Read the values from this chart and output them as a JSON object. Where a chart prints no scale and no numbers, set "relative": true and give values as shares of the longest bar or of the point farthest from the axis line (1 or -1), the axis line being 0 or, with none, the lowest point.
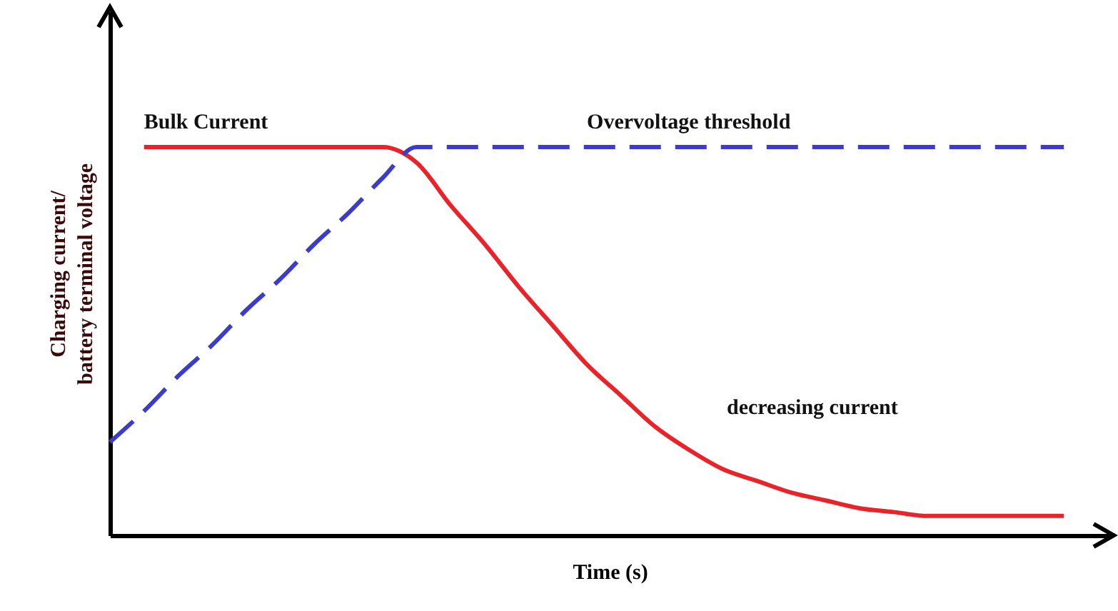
{
  "chart_data": {
    "type": "line",
    "relative": true,
    "xlabel": "Time (s)",
    "ylabel": "Charging current/\nbattery terminal voltage",
    "annotations": [
      "decreasing current"
    ],
    "categories": [
      null,
      null,
      null,
      null,
      null,
      null,
      null,
      null,
      null,
      null,
      null,
      null,
      null,
      null,
      null,
      null,
      null,
      null,
      null,
      null,
      null,
      null,
      null,
      null,
      null,
      null,
      null,
      null,
      null
    ],
    "series": [
      {
        "name": "Bulk Current",
        "color": "#e8242a",
        "line_style": "solid",
        "values": [
          null,
          1.0,
          1.0,
          1.0,
          1.0,
          1.0,
          1.0,
          1.0,
          1.0,
          0.96,
          0.85,
          0.75,
          0.64,
          0.54,
          0.44,
          0.36,
          0.28,
          0.22,
          0.17,
          0.14,
          0.11,
          0.09,
          0.07,
          0.06,
          0.05,
          0.05,
          0.05,
          0.05,
          0.05
        ]
      },
      {
        "name": "Overvoltage threshold",
        "color": "#3c3ccc",
        "line_style": "dashed",
        "values": [
          0.24,
          0.32,
          0.41,
          0.49,
          0.58,
          0.66,
          0.75,
          0.83,
          0.92,
          1.0,
          1.0,
          1.0,
          1.0,
          1.0,
          1.0,
          1.0,
          1.0,
          1.0,
          1.0,
          1.0,
          1.0,
          1.0,
          1.0,
          1.0,
          1.0,
          1.0,
          1.0,
          1.0,
          1.0
        ]
      }
    ]
  }
}
